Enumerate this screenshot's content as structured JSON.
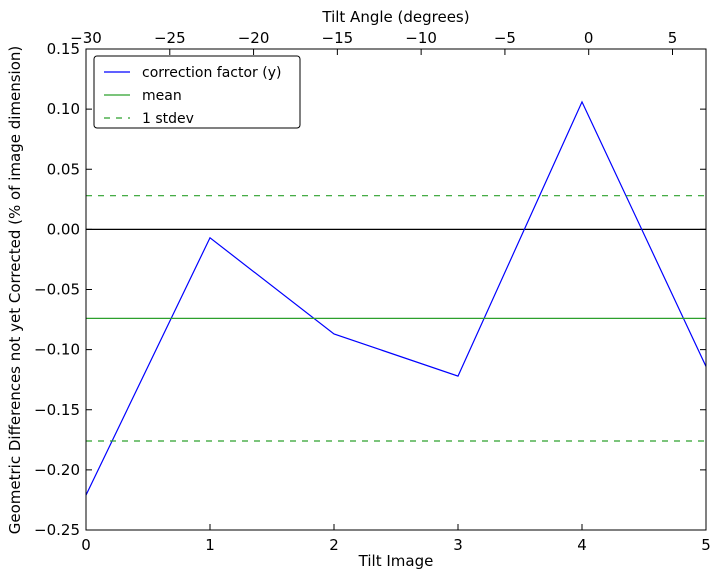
{
  "chart_data": {
    "type": "line",
    "title": "",
    "xlabel": "Tilt Image",
    "ylabel": "Geometric Differences not yet Corrected (% of image dimension)",
    "x2label": "Tilt Angle (degrees)",
    "xlim": [
      0,
      5
    ],
    "ylim": [
      -0.25,
      0.15
    ],
    "x2lim": [
      -30,
      7
    ],
    "xticks": [
      0,
      1,
      2,
      3,
      4,
      5
    ],
    "xtick_labels": [
      "0",
      "1",
      "2",
      "3",
      "4",
      "5"
    ],
    "yticks": [
      -0.25,
      -0.2,
      -0.15,
      -0.1,
      -0.05,
      0.0,
      0.05,
      0.1,
      0.15
    ],
    "ytick_labels": [
      "−0.25",
      "−0.20",
      "−0.15",
      "−0.10",
      "−0.05",
      "0.00",
      "0.05",
      "0.10",
      "0.15"
    ],
    "x2ticks": [
      -30,
      -25,
      -20,
      -15,
      -10,
      -5,
      0,
      5
    ],
    "x2tick_labels": [
      "−30",
      "−25",
      "−20",
      "−15",
      "−10",
      "−5",
      "0",
      "5"
    ],
    "grid": false,
    "legend_position": "top-left",
    "zero_line": 0.0,
    "series": [
      {
        "name": "correction factor (y)",
        "color": "#0000ff",
        "style": "solid",
        "x": [
          0,
          1,
          2,
          3,
          4,
          5
        ],
        "y": [
          -0.221,
          -0.007,
          -0.087,
          -0.122,
          0.106,
          -0.114
        ]
      },
      {
        "name": "mean",
        "color": "#2ca02c",
        "style": "solid",
        "x": [
          0,
          5
        ],
        "y": [
          -0.074,
          -0.074
        ]
      },
      {
        "name": "1 stdev",
        "color": "#2ca02c",
        "style": "dashed",
        "x": [
          0,
          5
        ],
        "y": [
          0.028,
          0.028
        ]
      },
      {
        "name": "",
        "color": "#2ca02c",
        "style": "dashed",
        "x": [
          0,
          5
        ],
        "y": [
          -0.176,
          -0.176
        ]
      }
    ],
    "legend": [
      "correction factor (y)",
      "mean",
      "1 stdev"
    ]
  }
}
